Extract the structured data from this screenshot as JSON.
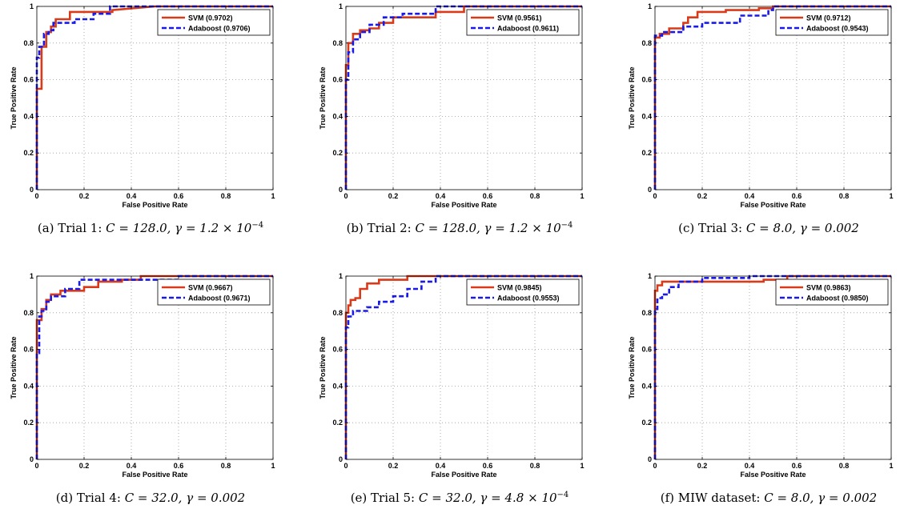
{
  "colors": {
    "svm": "#d83a1a",
    "adaboost": "#1a1ae6",
    "grid": "#9a9a9a",
    "axis": "#000000"
  },
  "chart_data": [
    {
      "type": "line",
      "xlabel": "False Positive Rate",
      "ylabel": "True Positive Rate",
      "xlim": [
        0,
        1
      ],
      "ylim": [
        0,
        1
      ],
      "grid": true,
      "legend": "top-right",
      "xticks": [
        "0",
        "0.2",
        "0.4",
        "0.6",
        "0.8",
        "1"
      ],
      "yticks": [
        "0",
        "0.2",
        "0.4",
        "0.6",
        "0.8",
        "1"
      ],
      "caption": {
        "label": "(a) Trial 1:",
        "C": "C = 128.0,",
        "gamma_base": "γ = 1.2 × 10",
        "gamma_exp": "−4"
      },
      "series": [
        {
          "name": "SVM (0.9702)",
          "style": "solid",
          "x": [
            0,
            0,
            0.02,
            0.02,
            0.04,
            0.04,
            0.06,
            0.06,
            0.08,
            0.08,
            0.14,
            0.14,
            0.32,
            0.32,
            0.5,
            1
          ],
          "y": [
            0,
            0.55,
            0.55,
            0.78,
            0.78,
            0.86,
            0.86,
            0.89,
            0.89,
            0.93,
            0.93,
            0.97,
            0.97,
            0.98,
            1.0,
            1.0
          ]
        },
        {
          "name": "Adaboost (0.9706)",
          "style": "dashed",
          "x": [
            0,
            0,
            0.01,
            0.01,
            0.03,
            0.03,
            0.05,
            0.05,
            0.07,
            0.07,
            0.16,
            0.16,
            0.24,
            0.24,
            0.31,
            0.31,
            1
          ],
          "y": [
            0,
            0.72,
            0.72,
            0.78,
            0.78,
            0.85,
            0.85,
            0.87,
            0.87,
            0.91,
            0.91,
            0.93,
            0.93,
            0.96,
            0.96,
            1.0,
            1.0
          ]
        }
      ]
    },
    {
      "type": "line",
      "xlabel": "False Positive Rate",
      "ylabel": "True Positive Rate",
      "xlim": [
        0,
        1
      ],
      "ylim": [
        0,
        1
      ],
      "grid": true,
      "legend": "top-right",
      "xticks": [
        "0",
        "0.2",
        "0.4",
        "0.6",
        "0.8",
        "1"
      ],
      "yticks": [
        "0",
        "0.2",
        "0.4",
        "0.6",
        "0.8",
        "1"
      ],
      "caption": {
        "label": "(b) Trial 2:",
        "C": "C = 128.0,",
        "gamma_base": "γ = 1.2 × 10",
        "gamma_exp": "−4"
      },
      "series": [
        {
          "name": "SVM (0.9561)",
          "style": "solid",
          "x": [
            0,
            0,
            0.01,
            0.01,
            0.03,
            0.03,
            0.06,
            0.06,
            0.1,
            0.1,
            0.14,
            0.14,
            0.2,
            0.2,
            0.38,
            0.38,
            0.5,
            0.5,
            1
          ],
          "y": [
            0,
            0.68,
            0.68,
            0.8,
            0.8,
            0.85,
            0.85,
            0.87,
            0.87,
            0.88,
            0.88,
            0.91,
            0.91,
            0.94,
            0.94,
            0.97,
            0.97,
            1.0,
            1.0
          ]
        },
        {
          "name": "Adaboost (0.9611)",
          "style": "dashed",
          "x": [
            0,
            0,
            0.01,
            0.01,
            0.03,
            0.03,
            0.06,
            0.06,
            0.1,
            0.1,
            0.16,
            0.16,
            0.24,
            0.24,
            0.38,
            0.38,
            1
          ],
          "y": [
            0,
            0.6,
            0.6,
            0.75,
            0.75,
            0.82,
            0.82,
            0.86,
            0.86,
            0.9,
            0.9,
            0.94,
            0.94,
            0.96,
            0.96,
            1.0,
            1.0
          ]
        }
      ]
    },
    {
      "type": "line",
      "xlabel": "False Positive Rate",
      "ylabel": "True Positive Rate",
      "xlim": [
        0,
        1
      ],
      "ylim": [
        0,
        1
      ],
      "grid": true,
      "legend": "top-right",
      "xticks": [
        "0",
        "0.2",
        "0.4",
        "0.6",
        "0.8",
        "1"
      ],
      "yticks": [
        "0",
        "0.2",
        "0.4",
        "0.6",
        "0.8",
        "1"
      ],
      "caption": {
        "label": "(c) Trial 3:",
        "C": "C = 8.0,",
        "gamma_base": "γ = 0.002",
        "gamma_exp": ""
      },
      "series": [
        {
          "name": "SVM (0.9712)",
          "style": "solid",
          "x": [
            0,
            0,
            0.02,
            0.02,
            0.06,
            0.06,
            0.12,
            0.12,
            0.14,
            0.14,
            0.18,
            0.18,
            0.3,
            0.3,
            0.44,
            0.44,
            0.5,
            0.5,
            1
          ],
          "y": [
            0,
            0.83,
            0.83,
            0.85,
            0.85,
            0.88,
            0.88,
            0.91,
            0.91,
            0.94,
            0.94,
            0.97,
            0.97,
            0.98,
            0.98,
            0.99,
            0.99,
            1.0,
            1.0
          ]
        },
        {
          "name": "Adaboost (0.9543)",
          "style": "dashed",
          "x": [
            0,
            0,
            0.03,
            0.03,
            0.12,
            0.12,
            0.2,
            0.2,
            0.36,
            0.36,
            0.48,
            0.48,
            0.5,
            0.5,
            1
          ],
          "y": [
            0,
            0.84,
            0.84,
            0.86,
            0.86,
            0.89,
            0.89,
            0.91,
            0.91,
            0.95,
            0.95,
            0.98,
            0.98,
            1.0,
            1.0
          ]
        }
      ]
    },
    {
      "type": "line",
      "xlabel": "False Positive Rate",
      "ylabel": "True Positive Rate",
      "xlim": [
        0,
        1
      ],
      "ylim": [
        0,
        1
      ],
      "grid": true,
      "legend": "top-right",
      "xticks": [
        "0",
        "0.2",
        "0.4",
        "0.6",
        "0.8",
        "1"
      ],
      "yticks": [
        "0",
        "0.2",
        "0.4",
        "0.6",
        "0.8",
        "1"
      ],
      "caption": {
        "label": "(d) Trial 4:",
        "C": "C = 32.0,",
        "gamma_base": "γ = 0.002",
        "gamma_exp": ""
      },
      "series": [
        {
          "name": "SVM (0.9667)",
          "style": "solid",
          "x": [
            0,
            0,
            0.02,
            0.02,
            0.04,
            0.04,
            0.06,
            0.06,
            0.1,
            0.1,
            0.2,
            0.2,
            0.26,
            0.26,
            0.36,
            0.36,
            0.44,
            0.44,
            1
          ],
          "y": [
            0,
            0.76,
            0.76,
            0.82,
            0.82,
            0.87,
            0.87,
            0.9,
            0.9,
            0.92,
            0.92,
            0.94,
            0.94,
            0.97,
            0.97,
            0.98,
            0.98,
            1.0,
            1.0
          ]
        },
        {
          "name": "Adaboost (0.9671)",
          "style": "dashed",
          "x": [
            0,
            0,
            0.01,
            0.01,
            0.02,
            0.02,
            0.04,
            0.04,
            0.06,
            0.06,
            0.12,
            0.12,
            0.18,
            0.18,
            0.6,
            0.6,
            1
          ],
          "y": [
            0,
            0.58,
            0.58,
            0.78,
            0.78,
            0.81,
            0.81,
            0.86,
            0.86,
            0.89,
            0.89,
            0.93,
            0.93,
            0.98,
            0.98,
            1.0,
            1.0
          ]
        }
      ]
    },
    {
      "type": "line",
      "xlabel": "False Positive Rate",
      "ylabel": "True Positive Rate",
      "xlim": [
        0,
        1
      ],
      "ylim": [
        0,
        1
      ],
      "grid": true,
      "legend": "top-right",
      "xticks": [
        "0",
        "0.2",
        "0.4",
        "0.6",
        "0.8",
        "1"
      ],
      "yticks": [
        "0",
        "0.2",
        "0.4",
        "0.6",
        "0.8",
        "1"
      ],
      "caption": {
        "label": "(e) Trial 5:",
        "C": "C = 32.0,",
        "gamma_base": "γ = 4.8 × 10",
        "gamma_exp": "−4"
      },
      "series": [
        {
          "name": "SVM (0.9845)",
          "style": "solid",
          "x": [
            0,
            0,
            0.01,
            0.01,
            0.02,
            0.02,
            0.04,
            0.04,
            0.06,
            0.06,
            0.09,
            0.09,
            0.14,
            0.14,
            0.26,
            0.26,
            1
          ],
          "y": [
            0,
            0.8,
            0.8,
            0.84,
            0.84,
            0.87,
            0.87,
            0.88,
            0.88,
            0.93,
            0.93,
            0.96,
            0.96,
            0.98,
            0.98,
            1.0,
            1.0
          ]
        },
        {
          "name": "Adaboost (0.9553)",
          "style": "dashed",
          "x": [
            0,
            0,
            0.01,
            0.01,
            0.03,
            0.03,
            0.09,
            0.09,
            0.14,
            0.14,
            0.2,
            0.2,
            0.26,
            0.26,
            0.32,
            0.32,
            0.38,
            0.38,
            1
          ],
          "y": [
            0,
            0.72,
            0.72,
            0.78,
            0.78,
            0.81,
            0.81,
            0.83,
            0.83,
            0.86,
            0.86,
            0.89,
            0.89,
            0.93,
            0.93,
            0.97,
            0.97,
            1.0,
            1.0
          ]
        }
      ]
    },
    {
      "type": "line",
      "xlabel": "False Positive Rate",
      "ylabel": "True Positive Rate",
      "xlim": [
        0,
        1
      ],
      "ylim": [
        0,
        1
      ],
      "grid": true,
      "legend": "top-right",
      "xticks": [
        "0",
        "0.2",
        "0.4",
        "0.6",
        "0.8",
        "1"
      ],
      "yticks": [
        "0",
        "0.2",
        "0.4",
        "0.6",
        "0.8",
        "1"
      ],
      "caption": {
        "label": "(f) MIW dataset:",
        "C": "C = 8.0,",
        "gamma_base": "γ = 0.002",
        "gamma_exp": ""
      },
      "series": [
        {
          "name": "SVM (0.9863)",
          "style": "solid",
          "x": [
            0,
            0,
            0.01,
            0.01,
            0.03,
            0.03,
            0.46,
            0.46,
            0.56,
            0.56,
            1
          ],
          "y": [
            0,
            0.92,
            0.92,
            0.95,
            0.95,
            0.97,
            0.97,
            0.98,
            0.98,
            1.0,
            1.0
          ]
        },
        {
          "name": "Adaboost (0.9850)",
          "style": "dashed",
          "x": [
            0,
            0,
            0.01,
            0.01,
            0.03,
            0.03,
            0.06,
            0.06,
            0.1,
            0.1,
            0.2,
            0.2,
            0.4,
            0.4,
            1
          ],
          "y": [
            0,
            0.82,
            0.82,
            0.88,
            0.88,
            0.9,
            0.9,
            0.94,
            0.94,
            0.97,
            0.97,
            0.99,
            0.99,
            1.0,
            1.0
          ]
        }
      ]
    }
  ]
}
